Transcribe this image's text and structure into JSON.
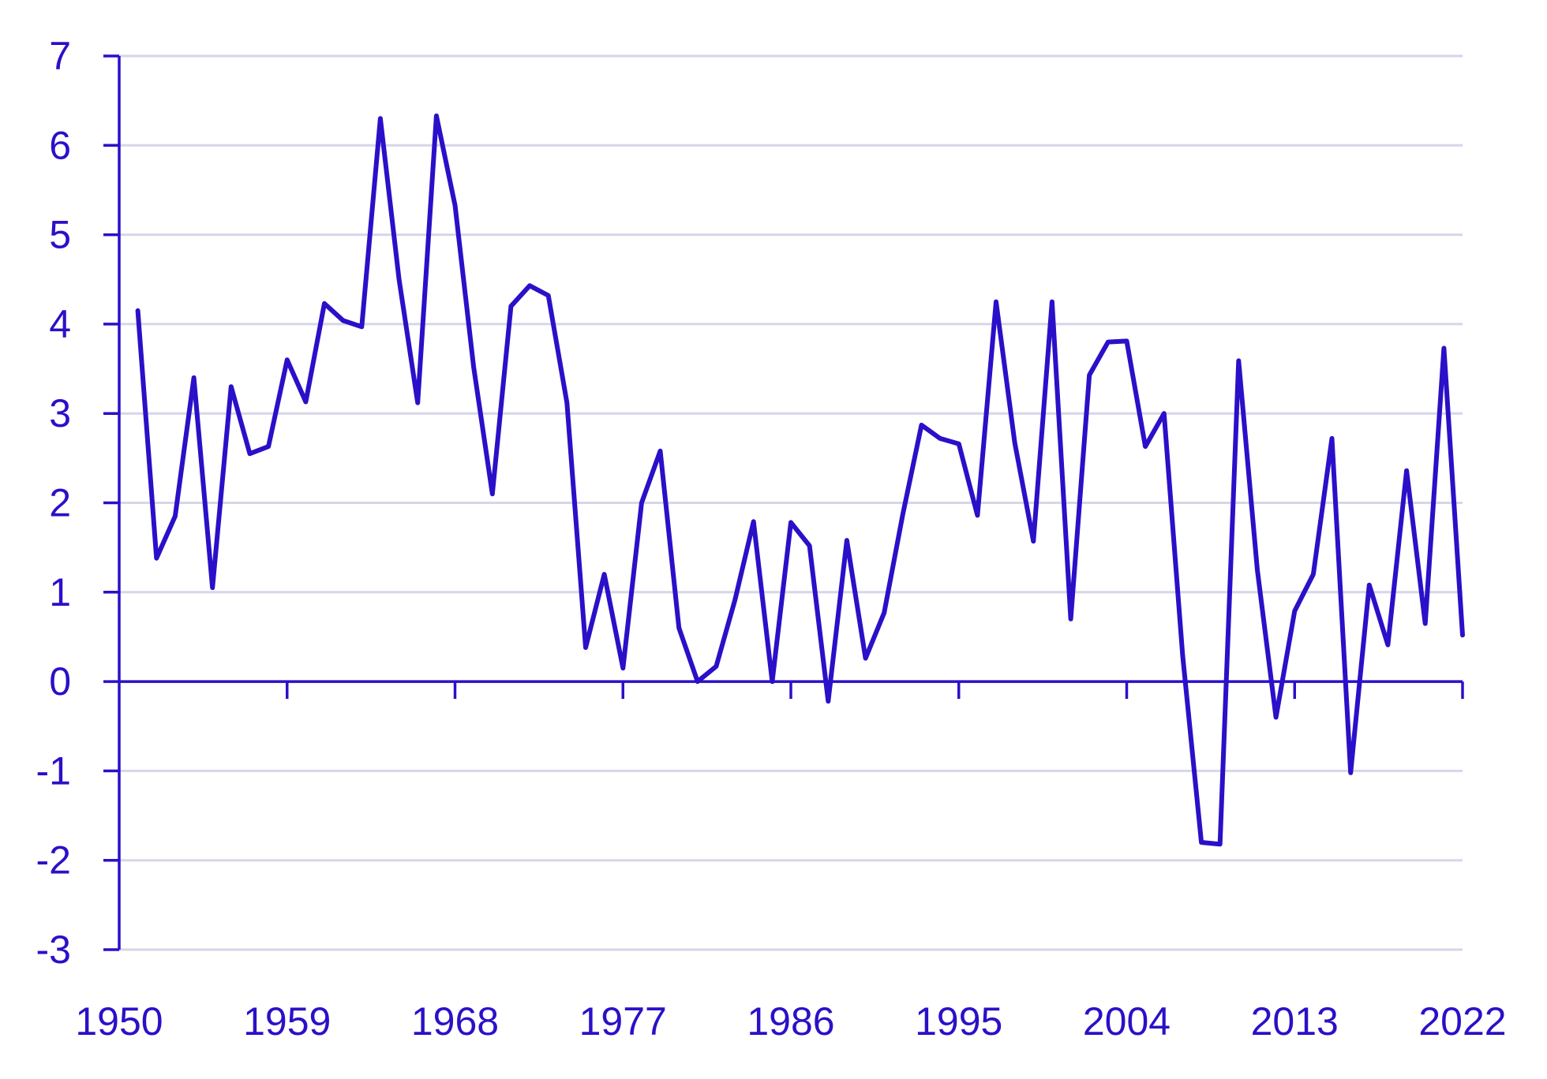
{
  "chart_data": {
    "type": "line",
    "title": "",
    "xlabel": "",
    "ylabel": "",
    "xlim": [
      1950,
      2022
    ],
    "ylim": [
      -3,
      7
    ],
    "grid": true,
    "legend": "none",
    "y_ticks": [
      "-3",
      "-2",
      "-1",
      "0",
      "1",
      "2",
      "3",
      "4",
      "5",
      "6",
      "7"
    ],
    "x_ticks": [
      "1950",
      "1959",
      "1968",
      "1977",
      "1986",
      "1995",
      "2004",
      "2013",
      "2022"
    ],
    "colors": {
      "line": "#2a10c8",
      "axis": "#2a10c8",
      "grid": "#d6d6ea",
      "text": "#2a10c8"
    },
    "series": [
      {
        "x": [
          1951,
          1952,
          1953,
          1954,
          1955,
          1956,
          1957,
          1958,
          1959,
          1960,
          1961,
          1962,
          1963,
          1964,
          1965,
          1966,
          1967,
          1968,
          1969,
          1970,
          1971,
          1972,
          1973,
          1974,
          1975,
          1976,
          1977,
          1978,
          1979,
          1980,
          1981,
          1982,
          1983,
          1984,
          1985,
          1986,
          1987,
          1988,
          1989,
          1990,
          1991,
          1992,
          1993,
          1994,
          1995,
          1996,
          1997,
          1998,
          1999,
          2000,
          2001,
          2002,
          2003,
          2004,
          2005,
          2006,
          2007,
          2008,
          2009,
          2010,
          2011,
          2012,
          2013,
          2014,
          2015,
          2016,
          2017,
          2018,
          2019,
          2020,
          2021,
          2022
        ],
        "values": [
          4.15,
          1.38,
          1.85,
          3.4,
          1.05,
          3.3,
          2.55,
          2.63,
          3.6,
          3.13,
          4.23,
          4.04,
          3.97,
          6.3,
          4.5,
          3.12,
          6.33,
          5.33,
          3.52,
          2.1,
          4.2,
          4.43,
          4.32,
          3.12,
          0.38,
          1.2,
          0.15,
          2.0,
          2.58,
          0.6,
          0.0,
          0.17,
          0.91,
          1.79,
          0.0,
          1.78,
          1.52,
          -0.22,
          1.58,
          0.26,
          0.77,
          1.87,
          2.87,
          2.72,
          2.66,
          1.86,
          4.25,
          2.67,
          1.57,
          4.25,
          0.7,
          3.43,
          3.8,
          3.81,
          2.63,
          3.0,
          0.29,
          -1.8,
          -1.82,
          3.59,
          1.25,
          -0.4,
          0.79,
          1.2,
          2.72,
          -1.02,
          1.08,
          0.41,
          2.36,
          0.65,
          3.73,
          0.52
        ]
      }
    ]
  }
}
